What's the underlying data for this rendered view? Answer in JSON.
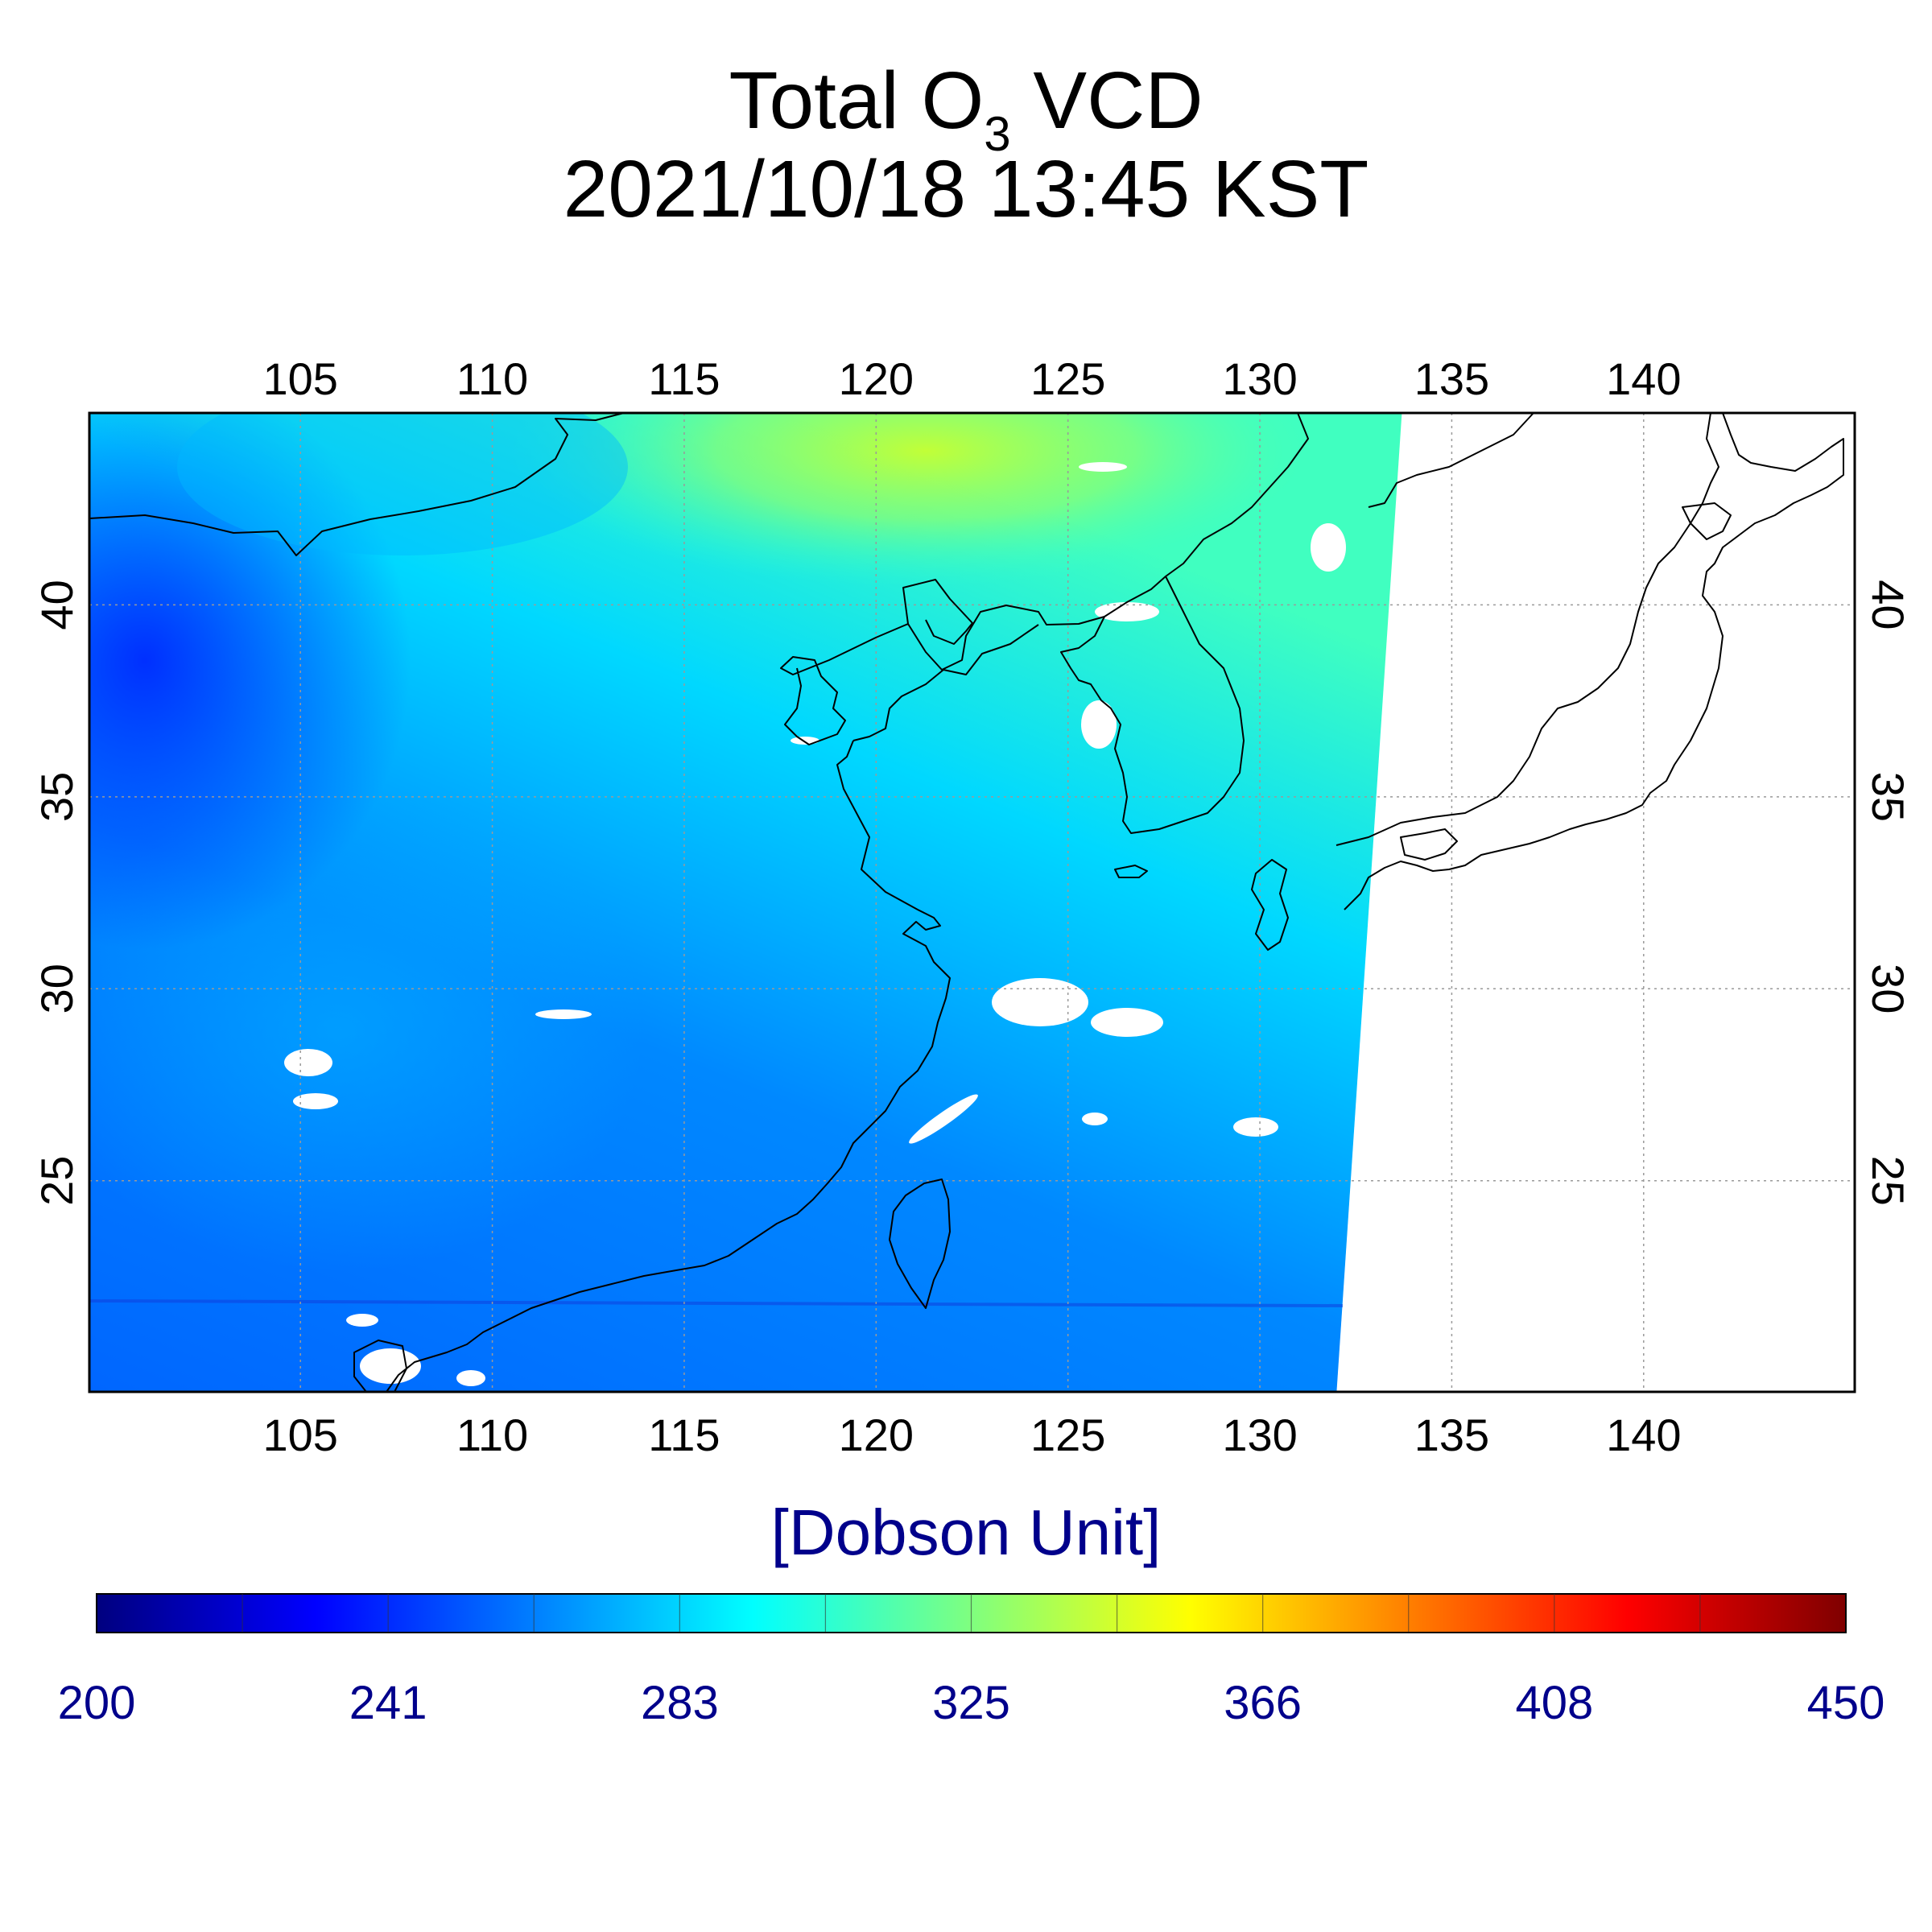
{
  "title": {
    "line1_prefix": "Total O",
    "line1_subscript": "3",
    "line1_suffix": " VCD",
    "line2": "2021/10/18 13:45 KST"
  },
  "map": {
    "lon_range": [
      99.5,
      145.5
    ],
    "lat_range": [
      19.5,
      45.0
    ],
    "lon_ticks": [
      105,
      110,
      115,
      120,
      125,
      130,
      135,
      140
    ],
    "lat_ticks": [
      25,
      30,
      35,
      40
    ],
    "grid": true,
    "swath_east_edge_lon": [
      132.0,
      133.7
    ]
  },
  "colorbar": {
    "unit_label": "[Dobson Unit]",
    "min": 200,
    "max": 450,
    "tick_labels": [
      "200",
      "241",
      "283",
      "325",
      "366",
      "408",
      "450"
    ],
    "colormap": "jet",
    "label_color": "#00008b"
  },
  "colors": {
    "jet_stops": [
      "#00007f",
      "#0000ff",
      "#007fff",
      "#00ffff",
      "#7fff7f",
      "#ffff00",
      "#ff7f00",
      "#ff0000",
      "#7f0000"
    ]
  }
}
